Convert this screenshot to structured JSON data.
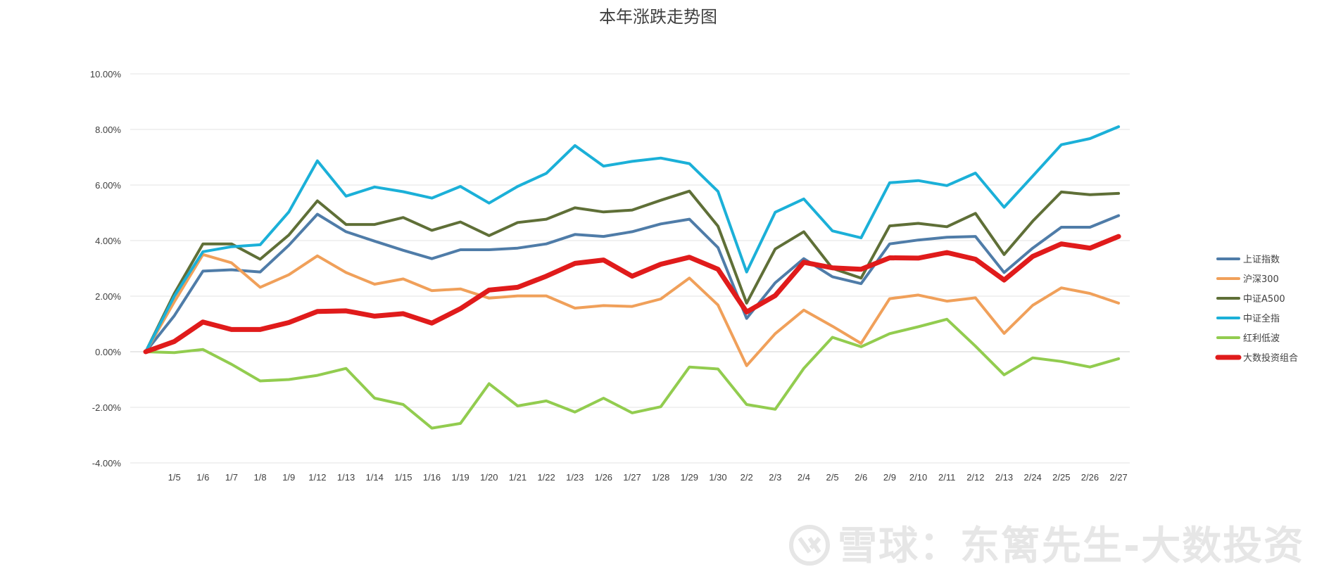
{
  "chart_data": {
    "type": "line",
    "title": "本年涨跌走势图",
    "xlabel": "",
    "ylabel": "",
    "ylim": [
      -0.04,
      0.1
    ],
    "yticks": [
      "10.00%",
      "8.00%",
      "6.00%",
      "4.00%",
      "2.00%",
      "0.00%",
      "-2.00%",
      "-4.00%"
    ],
    "grid": true,
    "legend_position": "right",
    "x": [
      "",
      "1/5",
      "1/6",
      "1/7",
      "1/8",
      "1/9",
      "1/12",
      "1/13",
      "1/14",
      "1/15",
      "1/16",
      "1/19",
      "1/20",
      "1/21",
      "1/22",
      "1/23",
      "1/26",
      "1/27",
      "1/28",
      "1/29",
      "1/30",
      "2/2",
      "2/3",
      "2/4",
      "2/5",
      "2/6",
      "2/9",
      "2/10",
      "2/11",
      "2/12",
      "2/13",
      "2/24",
      "2/25",
      "2/26",
      "2/27"
    ],
    "series": [
      {
        "name": "上证指数",
        "color": "#4f7ca8",
        "width": 4,
        "values": [
          0,
          0.013,
          0.029,
          0.0295,
          0.0287,
          0.0383,
          0.0495,
          0.0432,
          0.0398,
          0.0365,
          0.0335,
          0.0367,
          0.0367,
          0.0373,
          0.0388,
          0.0422,
          0.0415,
          0.0432,
          0.046,
          0.0477,
          0.0375,
          0.012,
          0.0248,
          0.0335,
          0.027,
          0.0245,
          0.0388,
          0.0402,
          0.0412,
          0.0415,
          0.0285,
          0.0373,
          0.0448,
          0.0448,
          0.049
        ]
      },
      {
        "name": "沪深300",
        "color": "#f0a05a",
        "width": 4,
        "values": [
          0,
          0.018,
          0.035,
          0.032,
          0.0232,
          0.0277,
          0.0345,
          0.0285,
          0.0243,
          0.0262,
          0.022,
          0.0226,
          0.0193,
          0.0201,
          0.0201,
          0.0157,
          0.0166,
          0.0163,
          0.019,
          0.0265,
          0.0168,
          -0.005,
          0.0065,
          0.015,
          0.0092,
          0.003,
          0.0191,
          0.0204,
          0.0182,
          0.0194,
          0.0066,
          0.0167,
          0.023,
          0.021,
          0.0175
        ]
      },
      {
        "name": "中证A500",
        "color": "#5f6f37",
        "width": 4,
        "values": [
          0,
          0.021,
          0.0388,
          0.0388,
          0.0333,
          0.042,
          0.0543,
          0.0458,
          0.0458,
          0.0483,
          0.0437,
          0.0467,
          0.0418,
          0.0465,
          0.0477,
          0.0518,
          0.0503,
          0.051,
          0.0545,
          0.0578,
          0.0452,
          0.0175,
          0.037,
          0.0432,
          0.03,
          0.0265,
          0.0453,
          0.0462,
          0.045,
          0.0498,
          0.035,
          0.047,
          0.0575,
          0.0565,
          0.057
        ]
      },
      {
        "name": "中证全指",
        "color": "#1bb0d8",
        "width": 4,
        "values": [
          0,
          0.02,
          0.036,
          0.0378,
          0.0385,
          0.0503,
          0.0687,
          0.056,
          0.0593,
          0.0576,
          0.0553,
          0.0595,
          0.0535,
          0.0595,
          0.0642,
          0.0742,
          0.0668,
          0.0685,
          0.0697,
          0.0677,
          0.0577,
          0.0287,
          0.0502,
          0.055,
          0.0435,
          0.041,
          0.0608,
          0.0616,
          0.0598,
          0.0643,
          0.052,
          0.0632,
          0.0745,
          0.0767,
          0.081
        ]
      },
      {
        "name": "红利低波",
        "color": "#92cc4f",
        "width": 4,
        "values": [
          0,
          -0.0003,
          0.0008,
          -0.0045,
          -0.0105,
          -0.01,
          -0.0085,
          -0.006,
          -0.0167,
          -0.019,
          -0.0275,
          -0.0258,
          -0.0115,
          -0.0195,
          -0.0177,
          -0.0217,
          -0.0167,
          -0.022,
          -0.0198,
          -0.0055,
          -0.0062,
          -0.019,
          -0.0207,
          -0.006,
          0.0052,
          0.0018,
          0.0065,
          0.009,
          0.0117,
          0.002,
          -0.0083,
          -0.0022,
          -0.0035,
          -0.0055,
          -0.0025
        ]
      },
      {
        "name": "大数投资组合",
        "color": "#e01b1b",
        "width": 7,
        "values": [
          0,
          0.0037,
          0.0107,
          0.008,
          0.008,
          0.0105,
          0.0145,
          0.0147,
          0.0128,
          0.0137,
          0.0103,
          0.0155,
          0.0222,
          0.0232,
          0.0272,
          0.0318,
          0.033,
          0.0272,
          0.0315,
          0.034,
          0.0297,
          0.0143,
          0.0202,
          0.0322,
          0.0302,
          0.0297,
          0.0338,
          0.0337,
          0.0357,
          0.0333,
          0.0258,
          0.0343,
          0.0388,
          0.0373,
          0.0415
        ]
      }
    ]
  },
  "watermark": {
    "text": "雪球：东篱先生-大数投资",
    "icon": "snowball-logo-icon"
  }
}
